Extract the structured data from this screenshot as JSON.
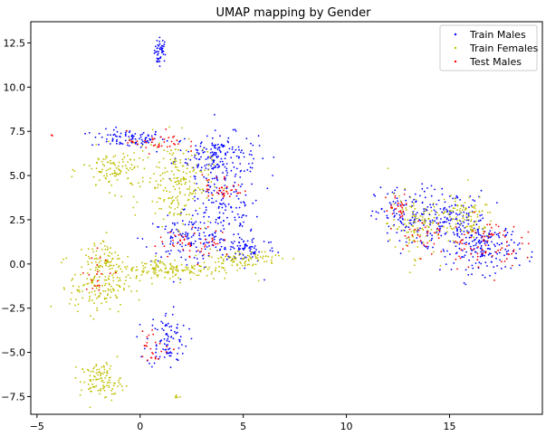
{
  "chart_data": {
    "type": "scatter",
    "title": "UMAP mapping by Gender",
    "xlabel": "",
    "ylabel": "",
    "xlim": [
      -5.3,
      19.5
    ],
    "ylim": [
      -8.5,
      13.7
    ],
    "xticks": [
      -5,
      0,
      5,
      10,
      15
    ],
    "yticks": [
      -7.5,
      -5.0,
      -2.5,
      0.0,
      2.5,
      5.0,
      7.5,
      10.0,
      12.5
    ],
    "xtick_labels": [
      "−5",
      "0",
      "5",
      "10",
      "15"
    ],
    "ytick_labels": [
      "−7.5",
      "−5.0",
      "−2.5",
      "0.0",
      "2.5",
      "5.0",
      "7.5",
      "10.0",
      "12.5"
    ],
    "grid": false,
    "legend": {
      "placement": "top-right"
    },
    "series": [
      {
        "name": "Train Males",
        "color": "#0000ff",
        "clusters": [
          {
            "cx": 1.0,
            "cy": 12.1,
            "sx": 0.15,
            "sy": 0.35,
            "n": 40
          },
          {
            "cx": 0.9,
            "cy": 11.5,
            "sx": 0.05,
            "sy": 0.1,
            "n": 8
          },
          {
            "cx": -0.6,
            "cy": 7.1,
            "sx": 0.9,
            "sy": 0.25,
            "n": 90
          },
          {
            "cx": 3.7,
            "cy": 6.2,
            "sx": 1.0,
            "sy": 0.6,
            "n": 150
          },
          {
            "cx": 4.0,
            "cy": 3.2,
            "sx": 0.9,
            "sy": 1.6,
            "n": 200
          },
          {
            "cx": 2.2,
            "cy": 1.4,
            "sx": 1.0,
            "sy": 0.6,
            "n": 110
          },
          {
            "cx": 5.2,
            "cy": 0.9,
            "sx": 0.7,
            "sy": 0.4,
            "n": 70
          },
          {
            "cx": 1.3,
            "cy": -4.3,
            "sx": 0.5,
            "sy": 0.8,
            "n": 90
          },
          {
            "cx": 13.0,
            "cy": 2.6,
            "sx": 0.8,
            "sy": 0.9,
            "n": 140
          },
          {
            "cx": 15.2,
            "cy": 2.5,
            "sx": 0.8,
            "sy": 0.8,
            "n": 140
          },
          {
            "cx": 16.8,
            "cy": 0.9,
            "sx": 0.8,
            "sy": 0.7,
            "n": 170
          }
        ]
      },
      {
        "name": "Train Females",
        "color": "#bfbf00",
        "clusters": [
          {
            "cx": -1.2,
            "cy": 5.3,
            "sx": 0.8,
            "sy": 0.6,
            "n": 110
          },
          {
            "cx": 1.8,
            "cy": 4.6,
            "sx": 0.8,
            "sy": 1.2,
            "n": 200
          },
          {
            "cx": -2.0,
            "cy": -1.2,
            "sx": 0.7,
            "sy": 0.8,
            "n": 150
          },
          {
            "cx": -1.8,
            "cy": 0.5,
            "sx": 0.4,
            "sy": 0.6,
            "n": 50
          },
          {
            "cx": 1.5,
            "cy": -0.3,
            "sx": 1.5,
            "sy": 0.3,
            "n": 170
          },
          {
            "cx": 4.8,
            "cy": 0.3,
            "sx": 1.0,
            "sy": 0.25,
            "n": 90
          },
          {
            "cx": -1.9,
            "cy": -6.6,
            "sx": 0.5,
            "sy": 0.5,
            "n": 110
          },
          {
            "cx": 1.8,
            "cy": -7.5,
            "sx": 0.08,
            "sy": 0.05,
            "n": 6
          },
          {
            "cx": 13.2,
            "cy": 2.2,
            "sx": 0.6,
            "sy": 0.9,
            "n": 110
          },
          {
            "cx": 15.6,
            "cy": 2.6,
            "sx": 0.8,
            "sy": 0.6,
            "n": 110
          }
        ]
      },
      {
        "name": "Test Males",
        "color": "#ff0000",
        "clusters": [
          {
            "cx": 0.8,
            "cy": 6.9,
            "sx": 0.7,
            "sy": 0.3,
            "n": 40
          },
          {
            "cx": 4.0,
            "cy": 4.3,
            "sx": 0.5,
            "sy": 0.4,
            "n": 40
          },
          {
            "cx": 2.7,
            "cy": 1.2,
            "sx": 0.9,
            "sy": 0.4,
            "n": 55
          },
          {
            "cx": 0.6,
            "cy": -4.7,
            "sx": 0.4,
            "sy": 0.5,
            "n": 25
          },
          {
            "cx": -1.8,
            "cy": -0.4,
            "sx": 0.5,
            "sy": 0.6,
            "n": 20
          },
          {
            "cx": 12.5,
            "cy": 3.2,
            "sx": 0.3,
            "sy": 0.4,
            "n": 25
          },
          {
            "cx": 16.6,
            "cy": 1.2,
            "sx": 0.9,
            "sy": 0.7,
            "n": 80
          },
          {
            "cx": 13.6,
            "cy": 1.6,
            "sx": 0.6,
            "sy": 0.7,
            "n": 30
          }
        ],
        "points": [
          [
            -4.3,
            7.3
          ]
        ]
      }
    ]
  }
}
